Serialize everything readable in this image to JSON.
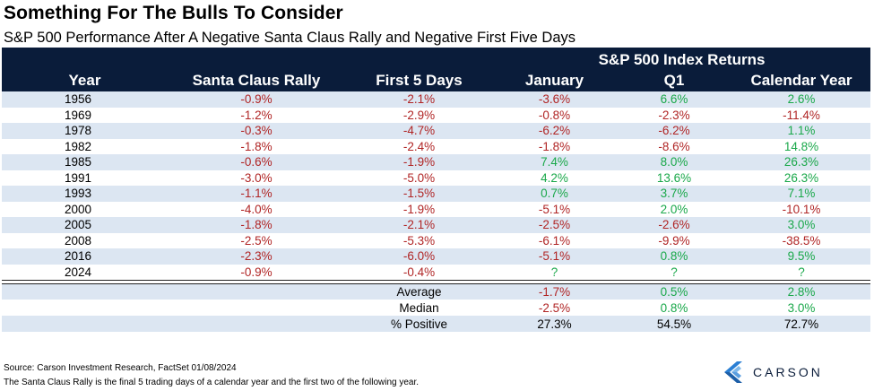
{
  "title": "Something For The Bulls To Consider",
  "subtitle": "S&P 500 Performance After A Negative Santa Claus Rally and Negative First Five Days",
  "table": {
    "group_header": "S&P 500 Index Returns",
    "columns": [
      "Year",
      "Santa Claus Rally",
      "First 5 Days",
      "January",
      "Q1",
      "Calendar Year"
    ],
    "rows": [
      [
        "1956",
        "-0.9%",
        "-2.1%",
        "-3.6%",
        "6.6%",
        "2.6%"
      ],
      [
        "1969",
        "-1.2%",
        "-2.9%",
        "-0.8%",
        "-2.3%",
        "-11.4%"
      ],
      [
        "1978",
        "-0.3%",
        "-4.7%",
        "-6.2%",
        "-6.2%",
        "1.1%"
      ],
      [
        "1982",
        "-1.8%",
        "-2.4%",
        "-1.8%",
        "-8.6%",
        "14.8%"
      ],
      [
        "1985",
        "-0.6%",
        "-1.9%",
        "7.4%",
        "8.0%",
        "26.3%"
      ],
      [
        "1991",
        "-3.0%",
        "-5.0%",
        "4.2%",
        "13.6%",
        "26.3%"
      ],
      [
        "1993",
        "-1.1%",
        "-1.5%",
        "0.7%",
        "3.7%",
        "7.1%"
      ],
      [
        "2000",
        "-4.0%",
        "-1.9%",
        "-5.1%",
        "2.0%",
        "-10.1%"
      ],
      [
        "2005",
        "-1.8%",
        "-2.1%",
        "-2.5%",
        "-2.6%",
        "3.0%"
      ],
      [
        "2008",
        "-2.5%",
        "-5.3%",
        "-6.1%",
        "-9.9%",
        "-38.5%"
      ],
      [
        "2016",
        "-2.3%",
        "-6.0%",
        "-5.1%",
        "0.8%",
        "9.5%"
      ],
      [
        "2024",
        "-0.9%",
        "-0.4%",
        "?",
        "?",
        "?"
      ]
    ],
    "summary": [
      {
        "label": "Average",
        "values": [
          "-1.7%",
          "0.5%",
          "2.8%"
        ]
      },
      {
        "label": "Median",
        "values": [
          "-2.5%",
          "0.8%",
          "3.0%"
        ]
      },
      {
        "label": "% Positive",
        "values": [
          "27.3%",
          "54.5%",
          "72.7%"
        ]
      }
    ]
  },
  "colors": {
    "header_bg": "#0a1c3a",
    "stripe": "#dce6f2",
    "negative": "#b02525",
    "positive": "#1aa84a"
  },
  "footer": {
    "source": "Source: Carson Investment Research, FactSet 01/08/2024",
    "note": "The Santa Claus Rally is the final 5 trading days of a calendar year and the first two of the following year."
  },
  "logo": {
    "text": "CARSON",
    "icon": "carson-logo-icon"
  }
}
